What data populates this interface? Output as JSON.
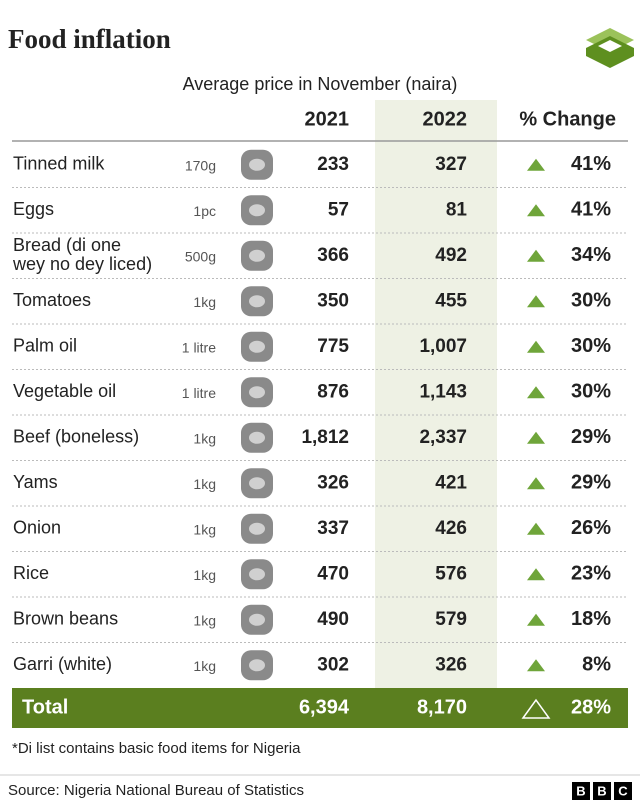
{
  "title": "Food inflation",
  "subtitle": "Average price in November (naira)",
  "table": {
    "header": [
      "2021",
      "2022",
      "% Change"
    ],
    "rows": [
      {
        "name": [
          "Tinned milk"
        ],
        "unit": "170g",
        "y2021": "233",
        "y2022": "327",
        "change": "41%"
      },
      {
        "name": [
          "Eggs"
        ],
        "unit": "1pc",
        "y2021": "57",
        "y2022": "81",
        "change": "41%"
      },
      {
        "name": [
          "Bread (di one",
          "wey no dey liced)"
        ],
        "unit": "500g",
        "y2021": "366",
        "y2022": "492",
        "change": "34%"
      },
      {
        "name": [
          "Tomatoes"
        ],
        "unit": "1kg",
        "y2021": "350",
        "y2022": "455",
        "change": "30%"
      },
      {
        "name": [
          "Palm oil"
        ],
        "unit": "1 litre",
        "y2021": "775",
        "y2022": "1,007",
        "change": "30%"
      },
      {
        "name": [
          "Vegetable oil"
        ],
        "unit": "1 litre",
        "y2021": "876",
        "y2022": "1,143",
        "change": "30%"
      },
      {
        "name": [
          "Beef (boneless)"
        ],
        "unit": "1kg",
        "y2021": "1,812",
        "y2022": "2,337",
        "change": "29%"
      },
      {
        "name": [
          "Yams"
        ],
        "unit": "1kg",
        "y2021": "326",
        "y2022": "421",
        "change": "29%"
      },
      {
        "name": [
          "Onion"
        ],
        "unit": "1kg",
        "y2021": "337",
        "y2022": "426",
        "change": "26%"
      },
      {
        "name": [
          "Rice"
        ],
        "unit": "1kg",
        "y2021": "470",
        "y2022": "576",
        "change": "23%"
      },
      {
        "name": [
          "Brown beans"
        ],
        "unit": "1kg",
        "y2021": "490",
        "y2022": "579",
        "change": "18%"
      },
      {
        "name": [
          "Garri (white)"
        ],
        "unit": "1kg",
        "y2021": "302",
        "y2022": "326",
        "change": "8%"
      }
    ],
    "total": {
      "name": "Total",
      "y2021": "6,394",
      "y2022": "8,170",
      "change": "28%"
    }
  },
  "footnote": "*Di list contains basic food items for Nigeria",
  "source": "Source: Nigeria National Bureau of Statistics",
  "logo": [
    "B",
    "B",
    "C"
  ]
}
